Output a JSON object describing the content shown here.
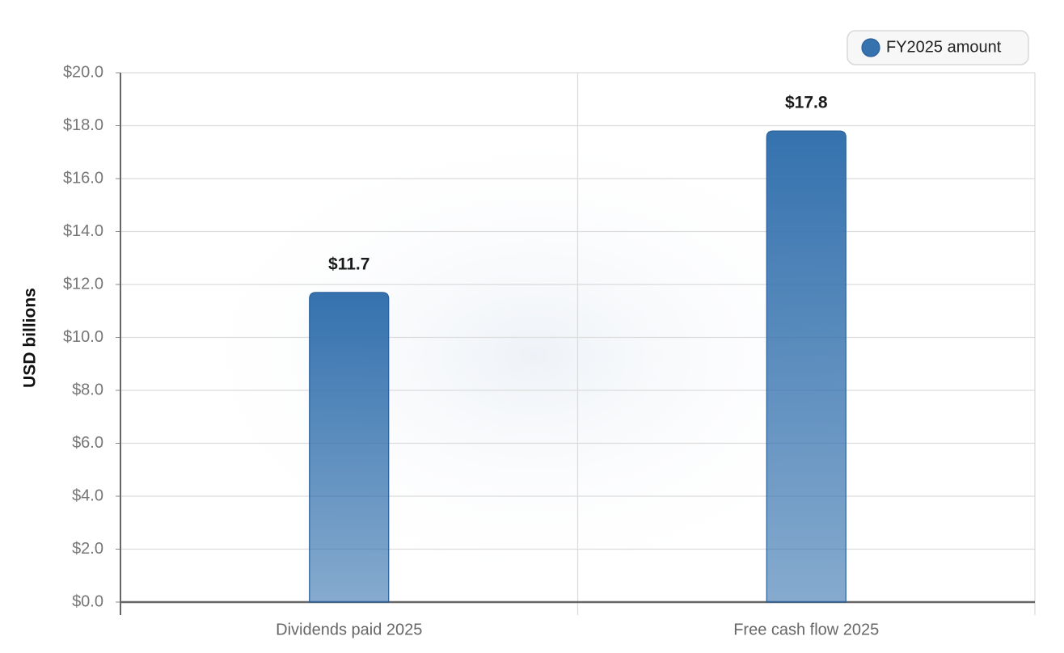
{
  "chart_data": {
    "type": "bar",
    "y_label": "USD billions",
    "categories": [
      "Dividends paid 2025",
      "Free cash flow 2025"
    ],
    "series": [
      {
        "name": "FY2025 amount",
        "color": "#3572ae",
        "values": [
          11.7,
          17.8
        ],
        "value_labels": [
          "$11.7",
          "$17.8"
        ]
      }
    ],
    "ylim": [
      0,
      20
    ],
    "yticks": [
      {
        "value": 0,
        "label": "$0.0"
      },
      {
        "value": 2,
        "label": "$2.0"
      },
      {
        "value": 4,
        "label": "$4.0"
      },
      {
        "value": 6,
        "label": "$6.0"
      },
      {
        "value": 8,
        "label": "$8.0"
      },
      {
        "value": 10,
        "label": "$10.0"
      },
      {
        "value": 12,
        "label": "$12.0"
      },
      {
        "value": 14,
        "label": "$14.0"
      },
      {
        "value": 16,
        "label": "$16.0"
      },
      {
        "value": 18,
        "label": "$18.0"
      },
      {
        "value": 20,
        "label": "$20.0"
      }
    ],
    "grid": true,
    "legend": "top-right"
  }
}
